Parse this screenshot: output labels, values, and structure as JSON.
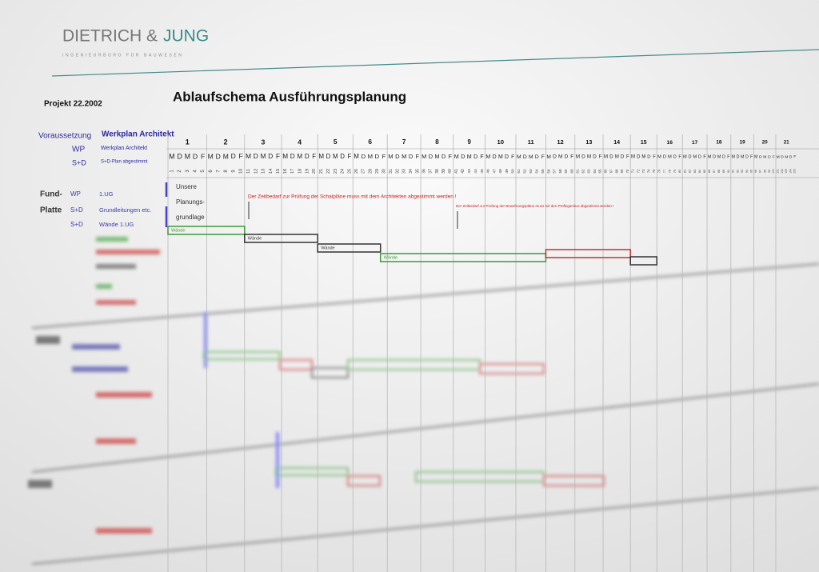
{
  "header": {
    "company_left": "DIETRICH &",
    "company_right": "JUNG",
    "tagline": "INGENIEURBÜRO FÜR BAUWESEN"
  },
  "project": "Projekt 22.2002",
  "title": "Ablaufschema Ausführungsplanung",
  "legend": {
    "head_code": "Voraussetzung",
    "head_label": "Werkplan Architekt",
    "items": [
      {
        "code": "WP",
        "label": "Werkplan Architekt"
      },
      {
        "code": "S+D",
        "label": "S+D-Plan abgestimmt"
      }
    ]
  },
  "weeks": [
    "1",
    "2",
    "3",
    "4",
    "5",
    "6",
    "7",
    "8",
    "9",
    "10",
    "11",
    "12",
    "13",
    "14",
    "15",
    "16",
    "17",
    "18",
    "19",
    "20",
    "21"
  ],
  "weekdays": [
    "M",
    "D",
    "M",
    "D",
    "F"
  ],
  "days": [
    1,
    2,
    3,
    4,
    5,
    6,
    7,
    8,
    9,
    10,
    11,
    12,
    13,
    14,
    15,
    16,
    17,
    18,
    19,
    20,
    21,
    22,
    23,
    24,
    25,
    26,
    27,
    28,
    29,
    30,
    31,
    32,
    33,
    34,
    35,
    36,
    37,
    38,
    39,
    40,
    41,
    42,
    43,
    44,
    45,
    46,
    47,
    48,
    49,
    50,
    51,
    52,
    53,
    54,
    55,
    56,
    57,
    58,
    59,
    60,
    61,
    62,
    63,
    64,
    65,
    66,
    67,
    68,
    69,
    70,
    71,
    72,
    73,
    74,
    75,
    76,
    77,
    78,
    79,
    80,
    81,
    82,
    83,
    84,
    85,
    86,
    87,
    88,
    89,
    90,
    91,
    92,
    93,
    94,
    95,
    96,
    97,
    98,
    99,
    100,
    101,
    102,
    103,
    104,
    105
  ],
  "rows": [
    {
      "section": "Fund-",
      "code": "WP",
      "label": "1.UG"
    },
    {
      "section": "Platte",
      "code": "S+D",
      "label": "Grundleitungen etc."
    },
    {
      "code": "S+D",
      "label": "Wände 1.UG"
    }
  ],
  "basis_box": [
    "Unsere",
    "Planungs-",
    "grundlage"
  ],
  "notes": [
    "Der Zeitbedarf zur Prüfung der Schalpläne muss mit dem Architekten abgestimmt werden !",
    "Der Zeitbedarf zur Prüfung der Bewehrungspläne muss mit den Prüfingenieur abgestimmt werden !"
  ],
  "bars": [
    {
      "start": 0,
      "end": 10,
      "color": "#3a9a3a",
      "label": "Wände"
    },
    {
      "start": 10,
      "end": 20,
      "color": "#333333",
      "label": "Wände"
    },
    {
      "start": 20,
      "end": 29,
      "color": "#333333",
      "label": "Wände"
    },
    {
      "start": 29,
      "end": 55,
      "color": "#3a9a3a",
      "label": "Wände"
    },
    {
      "start": 55,
      "end": 70,
      "color": "#c83030"
    },
    {
      "start": 70,
      "end": 75,
      "color": "#333333"
    }
  ]
}
